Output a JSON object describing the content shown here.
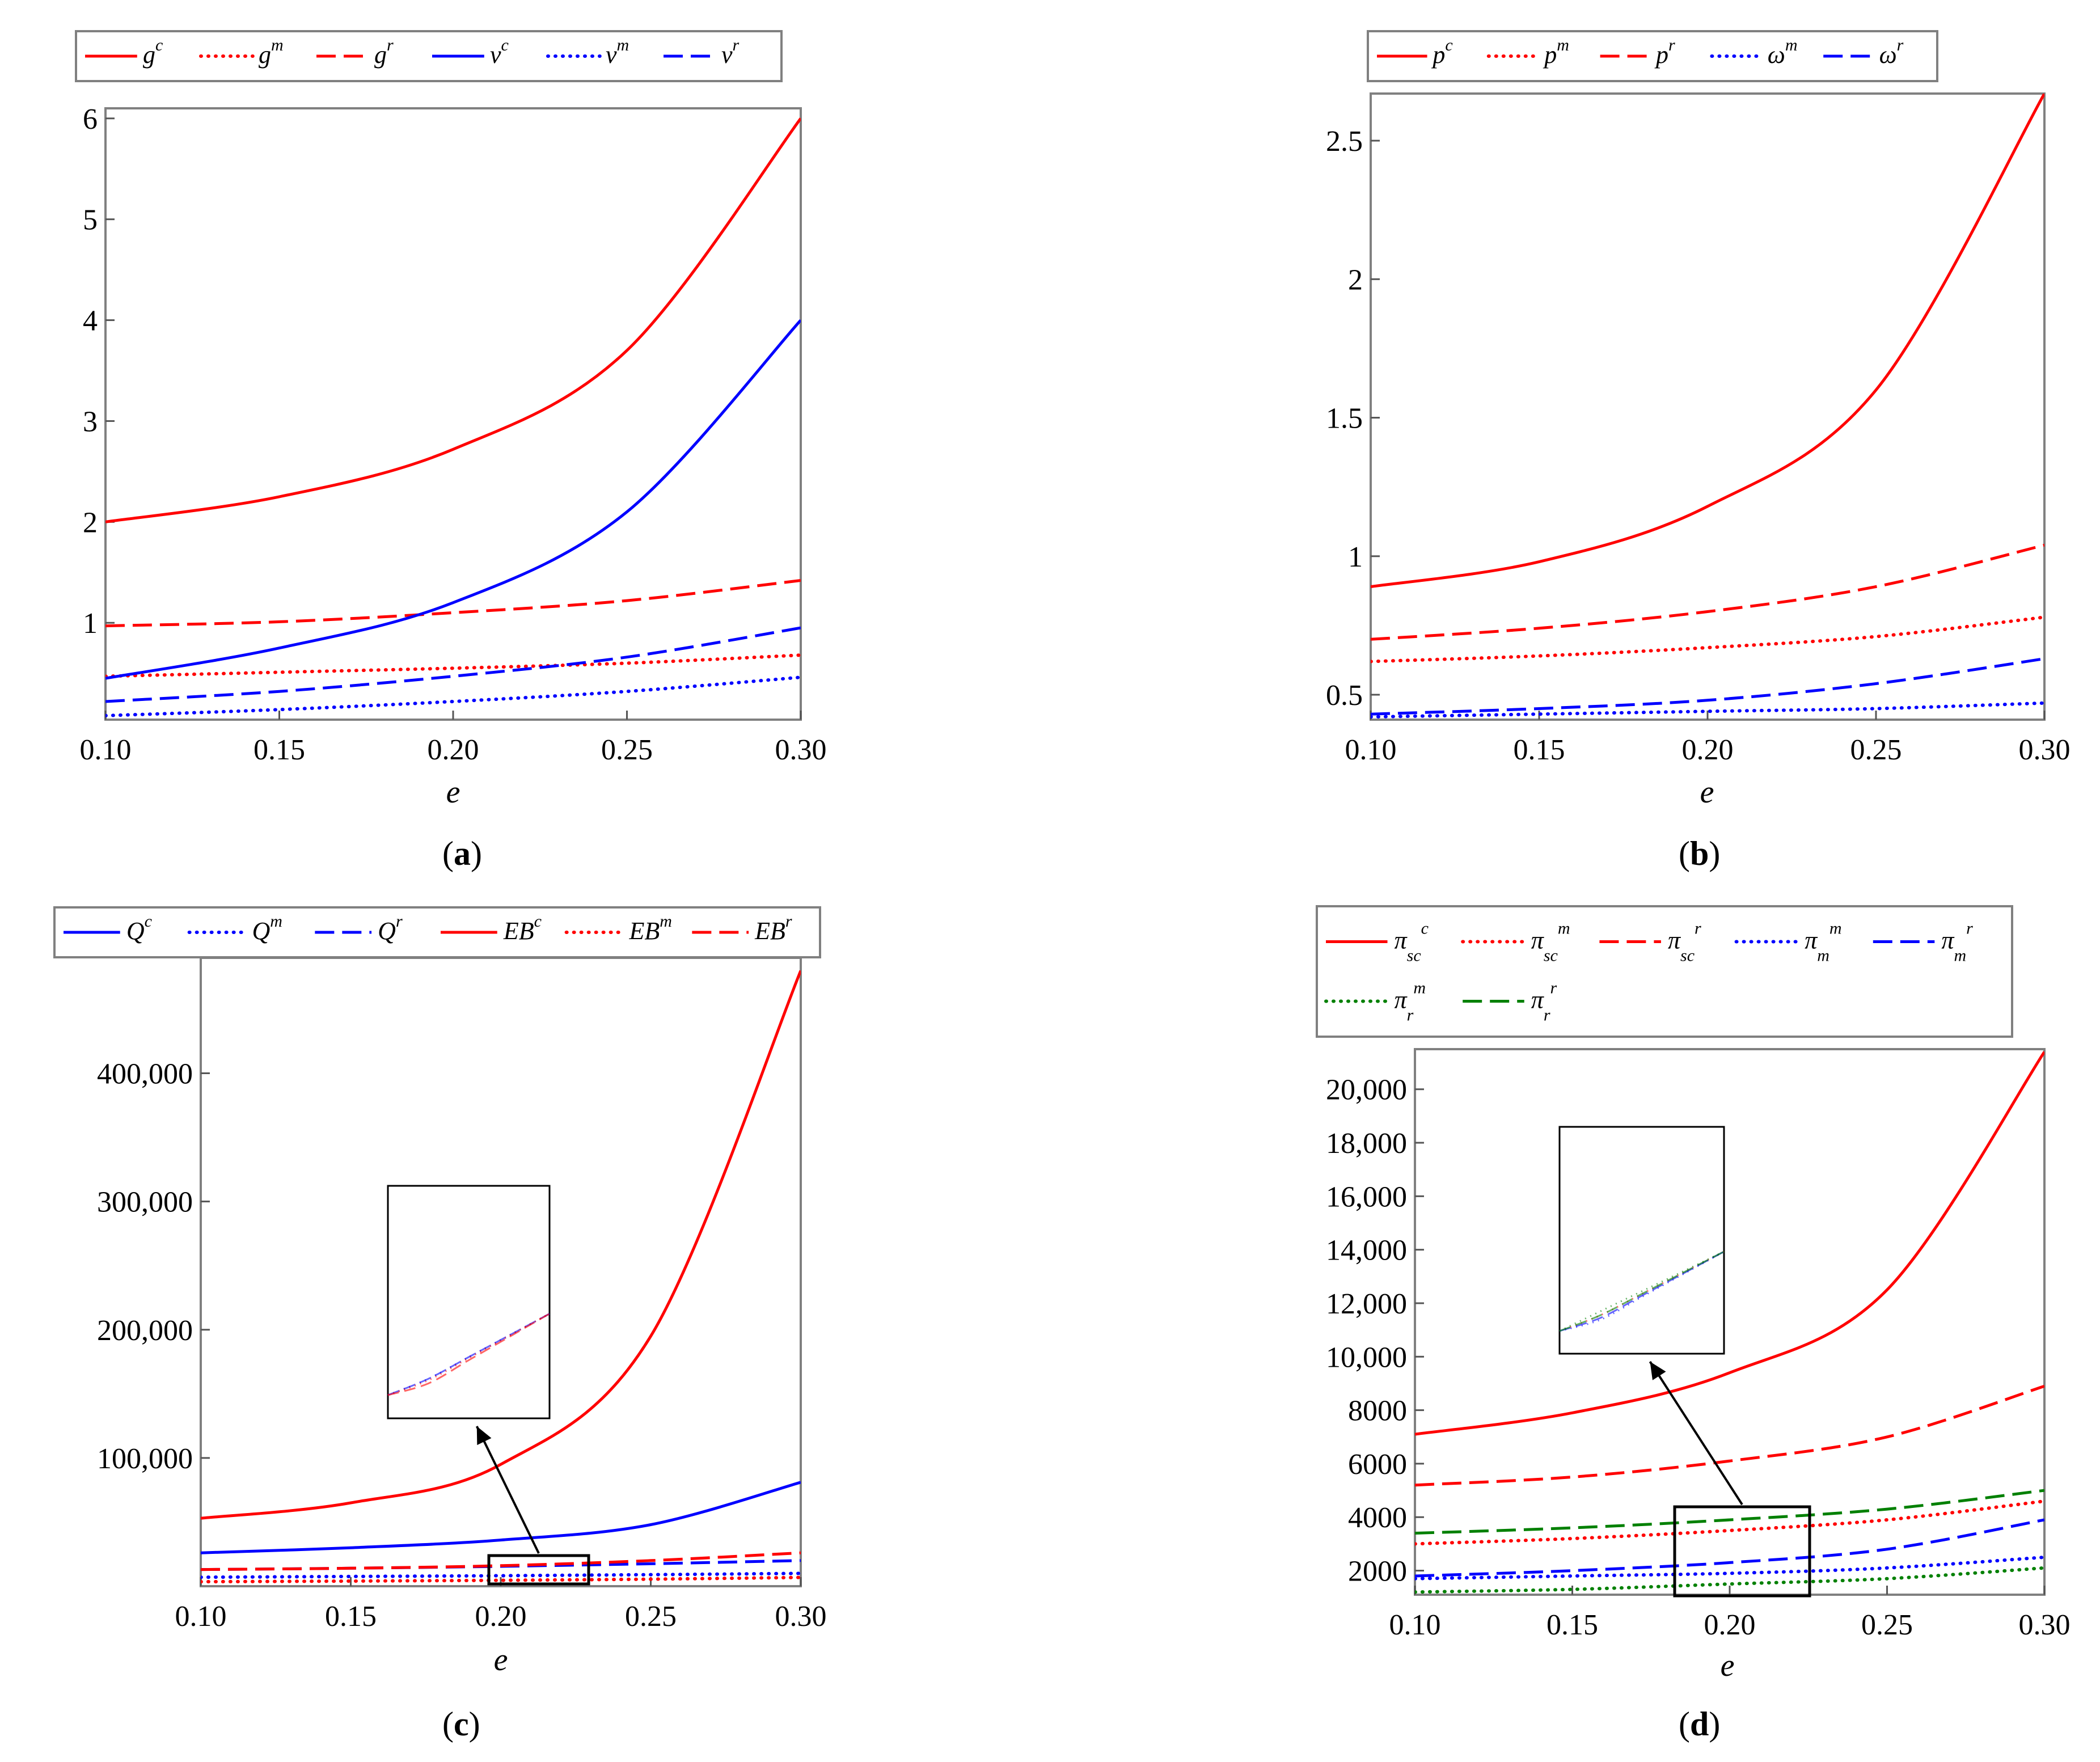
{
  "colors": {
    "red": "#ff0000",
    "blue": "#0000ff",
    "green": "#008000",
    "axis": "#808080"
  },
  "chart_data": [
    {
      "type": "line",
      "caption": "a",
      "xlabel": "e",
      "xlim": [
        0.1,
        0.3
      ],
      "ylim": [
        0.04,
        6.1
      ],
      "xticks": [
        0.1,
        0.15,
        0.2,
        0.25,
        0.3
      ],
      "xtick_labels": [
        "0.10",
        "0.15",
        "0.20",
        "0.25",
        "0.30"
      ],
      "yticks": [
        1,
        2,
        3,
        4,
        5,
        6
      ],
      "ytick_labels": [
        "1",
        "2",
        "3",
        "4",
        "5",
        "6"
      ],
      "series": [
        {
          "name": "g^c",
          "color": "red",
          "style": "solid",
          "x": [
            0.1,
            0.15,
            0.2,
            0.25,
            0.3
          ],
          "values": [
            2.0,
            2.25,
            2.72,
            3.7,
            6.0
          ]
        },
        {
          "name": "g^m",
          "color": "red",
          "style": "dotted",
          "x": [
            0.1,
            0.15,
            0.2,
            0.25,
            0.3
          ],
          "values": [
            0.47,
            0.51,
            0.55,
            0.6,
            0.68
          ]
        },
        {
          "name": "g^r",
          "color": "red",
          "style": "dashed",
          "x": [
            0.1,
            0.15,
            0.2,
            0.25,
            0.3
          ],
          "values": [
            0.97,
            1.01,
            1.1,
            1.22,
            1.42
          ]
        },
        {
          "name": "v^c",
          "color": "blue",
          "style": "solid",
          "x": [
            0.1,
            0.15,
            0.2,
            0.25,
            0.3
          ],
          "values": [
            0.45,
            0.75,
            1.2,
            2.1,
            4.0
          ]
        },
        {
          "name": "v^m",
          "color": "blue",
          "style": "dotted",
          "x": [
            0.1,
            0.15,
            0.2,
            0.25,
            0.3
          ],
          "values": [
            0.08,
            0.14,
            0.22,
            0.32,
            0.46
          ]
        },
        {
          "name": "v^r",
          "color": "blue",
          "style": "dashed",
          "x": [
            0.1,
            0.15,
            0.2,
            0.25,
            0.3
          ],
          "values": [
            0.22,
            0.32,
            0.47,
            0.66,
            0.95
          ]
        }
      ],
      "legend": [
        {
          "base": "g",
          "sup": "c"
        },
        {
          "base": "g",
          "sup": "m"
        },
        {
          "base": "g",
          "sup": "r"
        },
        {
          "base": "v",
          "sup": "c"
        },
        {
          "base": "v",
          "sup": "m"
        },
        {
          "base": "v",
          "sup": "r"
        }
      ]
    },
    {
      "type": "line",
      "caption": "b",
      "xlabel": "e",
      "xlim": [
        0.1,
        0.3
      ],
      "ylim": [
        0.41,
        2.67
      ],
      "xticks": [
        0.1,
        0.15,
        0.2,
        0.25,
        0.3
      ],
      "xtick_labels": [
        "0.10",
        "0.15",
        "0.20",
        "0.25",
        "0.30"
      ],
      "yticks": [
        0.5,
        1,
        1.5,
        2,
        2.5
      ],
      "ytick_labels": [
        "0.5",
        "1",
        "1.5",
        "2",
        "2.5"
      ],
      "series": [
        {
          "name": "p^c",
          "color": "red",
          "style": "solid",
          "x": [
            0.1,
            0.15,
            0.2,
            0.25,
            0.3
          ],
          "values": [
            0.89,
            0.98,
            1.18,
            1.6,
            2.67
          ]
        },
        {
          "name": "p^m",
          "color": "red",
          "style": "dotted",
          "x": [
            0.1,
            0.15,
            0.2,
            0.25,
            0.3
          ],
          "values": [
            0.62,
            0.64,
            0.67,
            0.71,
            0.78
          ]
        },
        {
          "name": "p^r",
          "color": "red",
          "style": "dashed",
          "x": [
            0.1,
            0.15,
            0.2,
            0.25,
            0.3
          ],
          "values": [
            0.7,
            0.74,
            0.8,
            0.89,
            1.04
          ]
        },
        {
          "name": "ω^m",
          "color": "blue",
          "style": "dotted",
          "x": [
            0.1,
            0.15,
            0.2,
            0.25,
            0.3
          ],
          "values": [
            0.42,
            0.43,
            0.44,
            0.45,
            0.47
          ]
        },
        {
          "name": "ω^r",
          "color": "blue",
          "style": "dashed",
          "x": [
            0.1,
            0.15,
            0.2,
            0.25,
            0.3
          ],
          "values": [
            0.43,
            0.45,
            0.48,
            0.54,
            0.63
          ]
        }
      ],
      "legend": [
        {
          "base": "p",
          "sup": "c"
        },
        {
          "base": "p",
          "sup": "m"
        },
        {
          "base": "p",
          "sup": "r"
        },
        {
          "base": "ω",
          "sup": "m"
        },
        {
          "base": "ω",
          "sup": "r"
        }
      ]
    },
    {
      "type": "line",
      "caption": "c",
      "xlabel": "e",
      "xlim": [
        0.1,
        0.3
      ],
      "ylim": [
        0,
        490000
      ],
      "xticks": [
        0.1,
        0.15,
        0.2,
        0.25,
        0.3
      ],
      "xtick_labels": [
        "0.10",
        "0.15",
        "0.20",
        "0.25",
        "0.30"
      ],
      "yticks": [
        100000,
        200000,
        300000,
        400000
      ],
      "ytick_labels": [
        "100,000",
        "200,000",
        "300,000",
        "400,000"
      ],
      "series": [
        {
          "name": "Q^c",
          "color": "blue",
          "style": "solid",
          "x": [
            0.1,
            0.15,
            0.2,
            0.25,
            0.3
          ],
          "values": [
            26000,
            30000,
            36000,
            48000,
            81000
          ]
        },
        {
          "name": "Q^m",
          "color": "blue",
          "style": "dotted",
          "x": [
            0.1,
            0.15,
            0.2,
            0.25,
            0.3
          ],
          "values": [
            7000,
            7600,
            8200,
            9000,
            10000
          ]
        },
        {
          "name": "Q^r",
          "color": "blue",
          "style": "dashed",
          "x": [
            0.1,
            0.15,
            0.2,
            0.25,
            0.3
          ],
          "values": [
            13000,
            14000,
            15500,
            17500,
            20000
          ]
        },
        {
          "name": "EB^c",
          "color": "red",
          "style": "solid",
          "x": [
            0.1,
            0.15,
            0.2,
            0.25,
            0.3
          ],
          "values": [
            53000,
            65000,
            95000,
            195000,
            480000
          ]
        },
        {
          "name": "EB^m",
          "color": "red",
          "style": "dotted",
          "x": [
            0.1,
            0.15,
            0.2,
            0.25,
            0.3
          ],
          "values": [
            3500,
            4000,
            4600,
            5500,
            6800
          ]
        },
        {
          "name": "EB^r",
          "color": "red",
          "style": "dashed",
          "x": [
            0.1,
            0.15,
            0.2,
            0.25,
            0.3
          ],
          "values": [
            13000,
            14000,
            16000,
            20000,
            26000
          ]
        }
      ],
      "legend": [
        {
          "base": "Q",
          "sup": "c"
        },
        {
          "base": "Q",
          "sup": "m"
        },
        {
          "base": "Q",
          "sup": "r"
        },
        {
          "base": "EB",
          "sup": "c"
        },
        {
          "base": "EB",
          "sup": "m"
        },
        {
          "base": "EB",
          "sup": "r"
        }
      ]
    },
    {
      "type": "line",
      "caption": "d",
      "xlabel": "e",
      "xlim": [
        0.1,
        0.3
      ],
      "ylim": [
        1100,
        21500
      ],
      "xticks": [
        0.1,
        0.15,
        0.2,
        0.25,
        0.3
      ],
      "xtick_labels": [
        "0.10",
        "0.15",
        "0.20",
        "0.25",
        "0.30"
      ],
      "yticks": [
        2000,
        4000,
        6000,
        8000,
        10000,
        12000,
        14000,
        16000,
        18000,
        20000
      ],
      "ytick_labels": [
        "2000",
        "4000",
        "6000",
        "8000",
        "10,000",
        "12,000",
        "14,000",
        "16,000",
        "18,000",
        "20,000"
      ],
      "series": [
        {
          "name": "π_sc^c",
          "color": "red",
          "style": "solid",
          "x": [
            0.1,
            0.15,
            0.2,
            0.25,
            0.3
          ],
          "values": [
            7100,
            7900,
            9400,
            12500,
            21400
          ]
        },
        {
          "name": "π_sc^m",
          "color": "red",
          "style": "dotted",
          "x": [
            0.1,
            0.15,
            0.2,
            0.25,
            0.3
          ],
          "values": [
            3000,
            3200,
            3500,
            3900,
            4600
          ]
        },
        {
          "name": "π_sc^r",
          "color": "red",
          "style": "dashed",
          "x": [
            0.1,
            0.15,
            0.2,
            0.25,
            0.3
          ],
          "values": [
            5200,
            5500,
            6100,
            7000,
            8900
          ]
        },
        {
          "name": "π_m^m",
          "color": "blue",
          "style": "dotted",
          "x": [
            0.1,
            0.15,
            0.2,
            0.25,
            0.3
          ],
          "values": [
            1700,
            1800,
            1900,
            2100,
            2500
          ]
        },
        {
          "name": "π_m^r",
          "color": "blue",
          "style": "dashed",
          "x": [
            0.1,
            0.15,
            0.2,
            0.25,
            0.3
          ],
          "values": [
            1800,
            2000,
            2300,
            2800,
            3900
          ]
        },
        {
          "name": "π_r^m",
          "color": "green",
          "style": "dotted",
          "x": [
            0.1,
            0.15,
            0.2,
            0.25,
            0.3
          ],
          "values": [
            1200,
            1300,
            1500,
            1700,
            2100
          ]
        },
        {
          "name": "π_r^r",
          "color": "green",
          "style": "dashed",
          "x": [
            0.1,
            0.15,
            0.2,
            0.25,
            0.3
          ],
          "values": [
            3400,
            3600,
            3900,
            4300,
            5000
          ]
        }
      ],
      "legend": [
        {
          "base": "π",
          "sub": "sc",
          "sup": "c"
        },
        {
          "base": "π",
          "sub": "sc",
          "sup": "m"
        },
        {
          "base": "π",
          "sub": "sc",
          "sup": "r"
        },
        {
          "base": "π",
          "sub": "m",
          "sup": "m"
        },
        {
          "base": "π",
          "sub": "m",
          "sup": "r"
        },
        {
          "base": "π",
          "sub": "r",
          "sup": "m"
        },
        {
          "base": "π",
          "sub": "r",
          "sup": "r"
        }
      ]
    }
  ]
}
